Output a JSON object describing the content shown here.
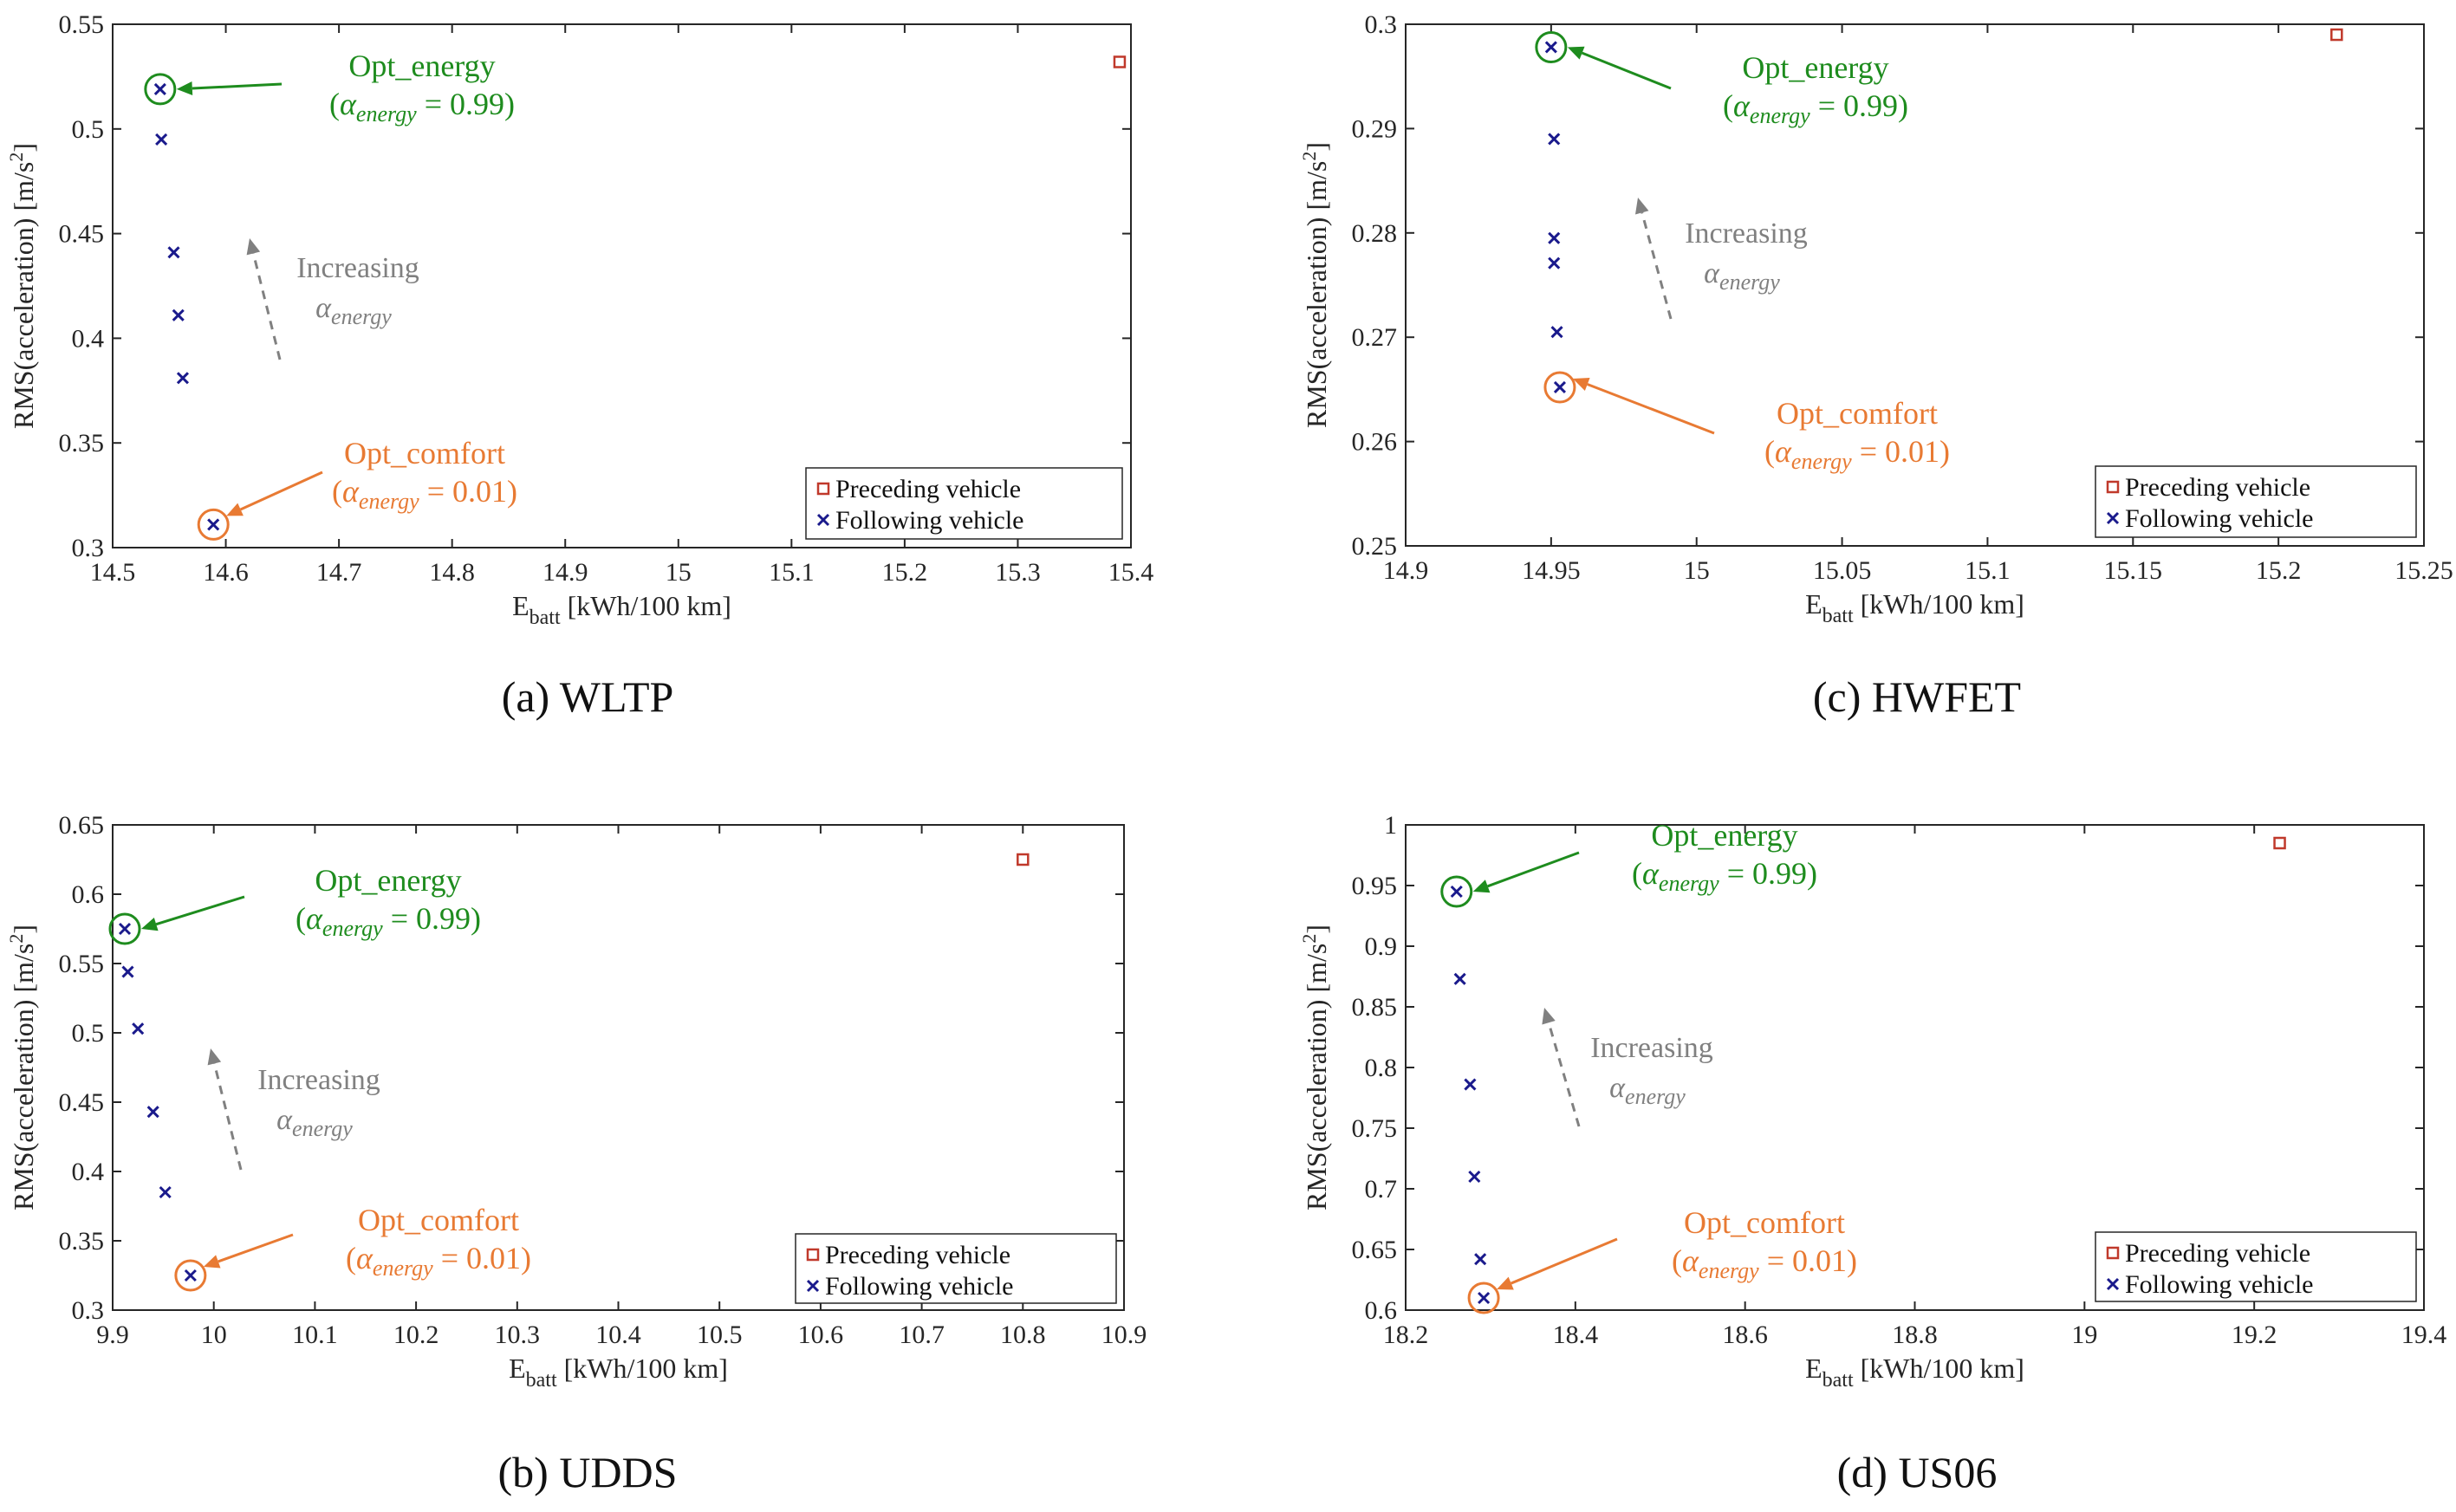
{
  "chart_data": [
    {
      "id": "a",
      "type": "scatter",
      "caption": "(a) WLTP",
      "xlabel_main": "E",
      "xlabel_sub": "batt",
      "xlabel_rest": " [kWh/100 km]",
      "ylabel": "RMS(acceleration) [m/s",
      "ylabel_sup": "2",
      "ylabel_close": "]",
      "xlim": [
        14.5,
        15.4
      ],
      "ylim": [
        0.3,
        0.55
      ],
      "xticks": [
        14.5,
        14.6,
        14.7,
        14.8,
        14.9,
        15,
        15.1,
        15.2,
        15.3,
        15.4
      ],
      "xtick_labels": [
        "14.5",
        "14.6",
        "14.7",
        "14.8",
        "14.9",
        "15",
        "15.1",
        "15.2",
        "15.3",
        "15.4"
      ],
      "yticks": [
        0.3,
        0.35,
        0.4,
        0.45,
        0.5,
        0.55
      ],
      "ytick_labels": [
        "0.3",
        "0.35",
        "0.4",
        "0.45",
        "0.5",
        "0.55"
      ],
      "series": [
        {
          "name": "Preceding vehicle",
          "marker": "square",
          "color": "#c0392b",
          "points": [
            [
              15.39,
              0.532
            ]
          ]
        },
        {
          "name": "Following vehicle",
          "marker": "x",
          "color": "#1a1a8c",
          "points": [
            [
              14.542,
              0.519
            ],
            [
              14.543,
              0.495
            ],
            [
              14.554,
              0.441
            ],
            [
              14.558,
              0.411
            ],
            [
              14.562,
              0.381
            ],
            [
              14.589,
              0.311
            ]
          ]
        }
      ],
      "annotations": {
        "energy": {
          "label": "Opt_energy",
          "alpha_text": "= 0.99",
          "color": "#1e8c1e",
          "point": [
            14.542,
            0.519
          ]
        },
        "comfort": {
          "label": "Opt_comfort",
          "alpha_text": "= 0.01",
          "color": "#e87a33",
          "point": [
            14.589,
            0.311
          ]
        },
        "increasing": {
          "label": "Increasing",
          "color": "#808080"
        },
        "alpha_symbol": "α",
        "alpha_sub": "energy"
      },
      "legend_location": "bottom-right"
    },
    {
      "id": "b",
      "type": "scatter",
      "caption": "(b) UDDS",
      "xlabel_main": "E",
      "xlabel_sub": "batt",
      "xlabel_rest": " [kWh/100 km]",
      "ylabel": "RMS(acceleration) [m/s",
      "ylabel_sup": "2",
      "ylabel_close": "]",
      "xlim": [
        9.9,
        10.9
      ],
      "ylim": [
        0.3,
        0.65
      ],
      "xticks": [
        9.9,
        10,
        10.1,
        10.2,
        10.3,
        10.4,
        10.5,
        10.6,
        10.7,
        10.8,
        10.9
      ],
      "xtick_labels": [
        "9.9",
        "10",
        "10.1",
        "10.2",
        "10.3",
        "10.4",
        "10.5",
        "10.6",
        "10.7",
        "10.8",
        "10.9"
      ],
      "yticks": [
        0.3,
        0.35,
        0.4,
        0.45,
        0.5,
        0.55,
        0.6,
        0.65
      ],
      "ytick_labels": [
        "0.3",
        "0.35",
        "0.4",
        "0.45",
        "0.5",
        "0.55",
        "0.6",
        "0.65"
      ],
      "series": [
        {
          "name": "Preceding vehicle",
          "marker": "square",
          "color": "#c0392b",
          "points": [
            [
              10.8,
              0.625
            ]
          ]
        },
        {
          "name": "Following vehicle",
          "marker": "x",
          "color": "#1a1a8c",
          "points": [
            [
              9.912,
              0.575
            ],
            [
              9.915,
              0.544
            ],
            [
              9.925,
              0.503
            ],
            [
              9.94,
              0.443
            ],
            [
              9.952,
              0.385
            ],
            [
              9.977,
              0.325
            ]
          ]
        }
      ],
      "annotations": {
        "energy": {
          "label": "Opt_energy",
          "alpha_text": "= 0.99",
          "color": "#1e8c1e",
          "point": [
            9.912,
            0.575
          ]
        },
        "comfort": {
          "label": "Opt_comfort",
          "alpha_text": "= 0.01",
          "color": "#e87a33",
          "point": [
            9.977,
            0.325
          ]
        },
        "increasing": {
          "label": "Increasing",
          "color": "#808080"
        },
        "alpha_symbol": "α",
        "alpha_sub": "energy"
      },
      "legend_location": "bottom-right"
    },
    {
      "id": "c",
      "type": "scatter",
      "caption": "(c) HWFET",
      "xlabel_main": "E",
      "xlabel_sub": "batt",
      "xlabel_rest": " [kWh/100 km]",
      "ylabel": "RMS(acceleration) [m/s",
      "ylabel_sup": "2",
      "ylabel_close": "]",
      "xlim": [
        14.9,
        15.25
      ],
      "ylim": [
        0.25,
        0.3
      ],
      "xticks": [
        14.9,
        14.95,
        15,
        15.05,
        15.1,
        15.15,
        15.2,
        15.25
      ],
      "xtick_labels": [
        "14.9",
        "14.95",
        "15",
        "15.05",
        "15.1",
        "15.15",
        "15.2",
        "15.25"
      ],
      "yticks": [
        0.25,
        0.26,
        0.27,
        0.28,
        0.29,
        0.3
      ],
      "ytick_labels": [
        "0.25",
        "0.26",
        "0.27",
        "0.28",
        "0.29",
        "0.3"
      ],
      "series": [
        {
          "name": "Preceding vehicle",
          "marker": "square",
          "color": "#c0392b",
          "points": [
            [
              15.22,
              0.299
            ]
          ]
        },
        {
          "name": "Following vehicle",
          "marker": "x",
          "color": "#1a1a8c",
          "points": [
            [
              14.95,
              0.2978
            ],
            [
              14.951,
              0.289
            ],
            [
              14.951,
              0.2795
            ],
            [
              14.951,
              0.2771
            ],
            [
              14.952,
              0.2705
            ],
            [
              14.953,
              0.2652
            ]
          ]
        }
      ],
      "annotations": {
        "energy": {
          "label": "Opt_energy",
          "alpha_text": "= 0.99",
          "color": "#1e8c1e",
          "point": [
            14.95,
            0.2978
          ]
        },
        "comfort": {
          "label": "Opt_comfort",
          "alpha_text": "= 0.01",
          "color": "#e87a33",
          "point": [
            14.953,
            0.2652
          ]
        },
        "increasing": {
          "label": "Increasing",
          "color": "#808080"
        },
        "alpha_symbol": "α",
        "alpha_sub": "energy"
      },
      "legend_location": "bottom-right"
    },
    {
      "id": "d",
      "type": "scatter",
      "caption": "(d) US06",
      "xlabel_main": "E",
      "xlabel_sub": "batt",
      "xlabel_rest": " [kWh/100 km]",
      "ylabel": "RMS(acceleration) [m/s",
      "ylabel_sup": "2",
      "ylabel_close": "]",
      "xlim": [
        18.2,
        19.4
      ],
      "ylim": [
        0.6,
        1.0
      ],
      "xticks": [
        18.2,
        18.4,
        18.6,
        18.8,
        19,
        19.2,
        19.4
      ],
      "xtick_labels": [
        "18.2",
        "18.4",
        "18.6",
        "18.8",
        "19",
        "19.2",
        "19.4"
      ],
      "yticks": [
        0.6,
        0.65,
        0.7,
        0.75,
        0.8,
        0.85,
        0.9,
        0.95,
        1.0
      ],
      "ytick_labels": [
        "0.6",
        "0.65",
        "0.7",
        "0.75",
        "0.8",
        "0.85",
        "0.9",
        "0.95",
        "1"
      ],
      "series": [
        {
          "name": "Preceding vehicle",
          "marker": "square",
          "color": "#c0392b",
          "points": [
            [
              19.23,
              0.985
            ]
          ]
        },
        {
          "name": "Following vehicle",
          "marker": "x",
          "color": "#1a1a8c",
          "points": [
            [
              18.26,
              0.945
            ],
            [
              18.264,
              0.873
            ],
            [
              18.276,
              0.786
            ],
            [
              18.281,
              0.71
            ],
            [
              18.288,
              0.642
            ],
            [
              18.292,
              0.61
            ]
          ]
        }
      ],
      "annotations": {
        "energy": {
          "label": "Opt_energy",
          "alpha_text": "= 0.99",
          "color": "#1e8c1e",
          "point": [
            18.26,
            0.945
          ]
        },
        "comfort": {
          "label": "Opt_comfort",
          "alpha_text": "= 0.01",
          "color": "#e87a33",
          "point": [
            18.292,
            0.61
          ]
        },
        "increasing": {
          "label": "Increasing",
          "color": "#808080"
        },
        "alpha_symbol": "α",
        "alpha_sub": "energy"
      },
      "legend_location": "bottom-right"
    }
  ]
}
